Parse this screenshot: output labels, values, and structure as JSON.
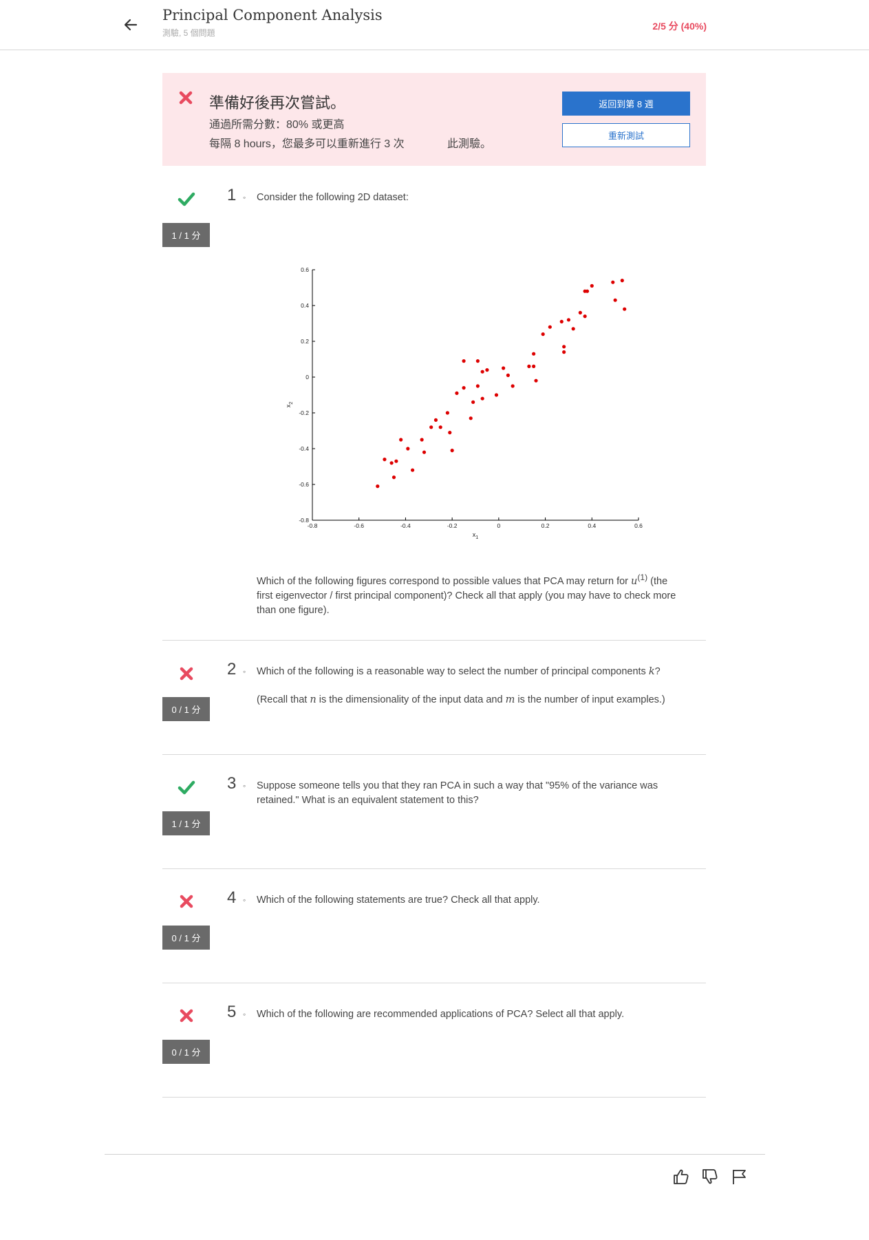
{
  "header": {
    "title": "Principal Component Analysis",
    "subtitle": "測驗, 5 個問題",
    "score": "2/5 分 (40%)"
  },
  "banner": {
    "title": "準備好後再次嘗試。",
    "pass_line": "通過所需分數：80% 或更高",
    "retry_line": "每隔 8 hours，您最多可以重新進行 3 次",
    "retry_tail": "此測驗。",
    "back_button": "返回到第 8 週",
    "retake_button": "重新測試",
    "accent": "#e84a5f",
    "background": "#fde7ea"
  },
  "questions": [
    {
      "number": "1",
      "status": "correct",
      "icon": "check-icon",
      "score": "1 / 1 分",
      "text": "Consider the following 2D dataset:",
      "followup": "first eigenvector / first principal component)? Check all that apply (you may have to check more than one figure).",
      "followup_start": "Which of the following figures correspond to possible values that PCA may return for ",
      "followup_var": "u",
      "followup_sup": "(1)",
      "followup_after": " (the"
    },
    {
      "number": "2",
      "status": "wrong",
      "icon": "cross-icon",
      "score": "0 / 1 分",
      "text_start": "Which of the following is a reasonable way to select the number of principal components ",
      "text_var": "k",
      "text_end": "?",
      "note_start": "(Recall that ",
      "note_var1": "n",
      "note_mid": " is the dimensionality of the input data and ",
      "note_var2": "m",
      "note_end": " is the number of input examples.)"
    },
    {
      "number": "3",
      "status": "correct",
      "icon": "check-icon",
      "score": "1 / 1 分",
      "text": "Suppose someone tells you that they ran PCA in such a way that \"95% of the variance was retained.\" What is an equivalent statement to this?"
    },
    {
      "number": "4",
      "status": "wrong",
      "icon": "cross-icon",
      "score": "0 / 1 分",
      "text": "Which of the following statements are true? Check all that apply."
    },
    {
      "number": "5",
      "status": "wrong",
      "icon": "cross-icon",
      "score": "0 / 1 分",
      "text": "Which of the following are recommended applications of PCA? Select all that apply."
    }
  ],
  "colors": {
    "correct": "#2eab62",
    "wrong": "#e84a5f",
    "primary": "#2a73cc",
    "point": "#dd0000"
  },
  "footer": {
    "icons": [
      "thumbs-up-icon",
      "thumbs-down-icon",
      "flag-icon"
    ]
  },
  "chart_data": {
    "type": "scatter",
    "xlabel": "x",
    "xlabel_sub": "1",
    "ylabel": "x",
    "ylabel_sub": "2",
    "xlim": [
      -0.8,
      0.6
    ],
    "ylim": [
      -0.8,
      0.6
    ],
    "xticks": [
      "-0.8",
      "-0.6",
      "-0.4",
      "-0.2",
      "0",
      "0.2",
      "0.4",
      "0.6"
    ],
    "yticks": [
      "-0.8",
      "-0.6",
      "-0.4",
      "-0.2",
      "0",
      "0.2",
      "0.4",
      "0.6"
    ],
    "grid": false,
    "x": [
      -0.52,
      -0.49,
      -0.46,
      -0.45,
      -0.44,
      -0.42,
      -0.39,
      -0.37,
      -0.33,
      -0.32,
      -0.29,
      -0.27,
      -0.25,
      -0.22,
      -0.21,
      -0.2,
      -0.18,
      -0.15,
      -0.15,
      -0.12,
      -0.11,
      -0.09,
      -0.09,
      -0.07,
      -0.07,
      -0.05,
      -0.01,
      0.02,
      0.04,
      0.06,
      0.13,
      0.15,
      0.15,
      0.16,
      0.19,
      0.22,
      0.27,
      0.28,
      0.28,
      0.3,
      0.32,
      0.35,
      0.37,
      0.37,
      0.38,
      0.4,
      0.49,
      0.5,
      0.53,
      0.54
    ],
    "y": [
      -0.61,
      -0.46,
      -0.48,
      -0.56,
      -0.47,
      -0.35,
      -0.4,
      -0.52,
      -0.35,
      -0.42,
      -0.28,
      -0.24,
      -0.28,
      -0.2,
      -0.31,
      -0.41,
      -0.09,
      -0.06,
      0.09,
      -0.23,
      -0.14,
      0.09,
      -0.05,
      0.03,
      -0.12,
      0.04,
      -0.1,
      0.05,
      0.01,
      -0.05,
      0.06,
      0.13,
      0.06,
      -0.02,
      0.24,
      0.28,
      0.31,
      0.17,
      0.14,
      0.32,
      0.27,
      0.36,
      0.34,
      0.48,
      0.48,
      0.51,
      0.53,
      0.43,
      0.54,
      0.38
    ]
  }
}
